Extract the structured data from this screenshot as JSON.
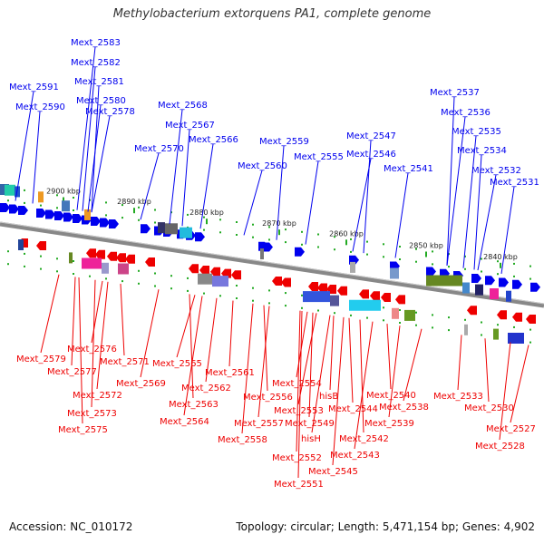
{
  "title": "Methylobacterium extorquens PA1, complete genome",
  "footer": {
    "accession": "Accession: NC_010172",
    "info": "Topology: circular; Length: 5,471,154 bp; Genes: 4,902"
  },
  "colors": {
    "forward": "#0000ee",
    "reverse": "#ee0000",
    "backbone": "#888888",
    "tick": "#22aa22"
  },
  "chart_data": {
    "type": "genome-map",
    "scale_labels": [
      "2900 kbp",
      "2890 kbp",
      "2880 kbp",
      "2870 kbp",
      "2860 kbp",
      "2850 kbp",
      "2840 kbp"
    ],
    "forward_labels": [
      "Mext_2583",
      "Mext_2582",
      "Mext_2581",
      "Mext_2591",
      "Mext_2580",
      "Mext_2590",
      "Mext_2578",
      "Mext_2568",
      "Mext_2567",
      "Mext_2570",
      "Mext_2566",
      "Mext_2559",
      "Mext_2560",
      "Mext_2555",
      "Mext_2547",
      "Mext_2546",
      "Mext_2541",
      "Mext_2537",
      "Mext_2536",
      "Mext_2535",
      "Mext_2534",
      "Mext_2532",
      "Mext_2531"
    ],
    "reverse_labels": [
      "Mext_2579",
      "Mext_2576",
      "Mext_2577",
      "Mext_2571",
      "Mext_2569",
      "Mext_2572",
      "Mext_2573",
      "Mext_2575",
      "Mext_2565",
      "Mext_2562",
      "Mext_2561",
      "Mext_2563",
      "Mext_2564",
      "Mext_2554",
      "hisB",
      "Mext_2556",
      "Mext_2553",
      "Mext_2557",
      "Mext_2549",
      "Mext_2544",
      "hisH",
      "Mext_2558",
      "Mext_2552",
      "Mext_2542",
      "Mext_2543",
      "Mext_2545",
      "Mext_2551",
      "Mext_2540",
      "Mext_2538",
      "Mext_2539",
      "Mext_2533",
      "Mext_2530",
      "Mext_2527",
      "Mext_2528"
    ]
  }
}
